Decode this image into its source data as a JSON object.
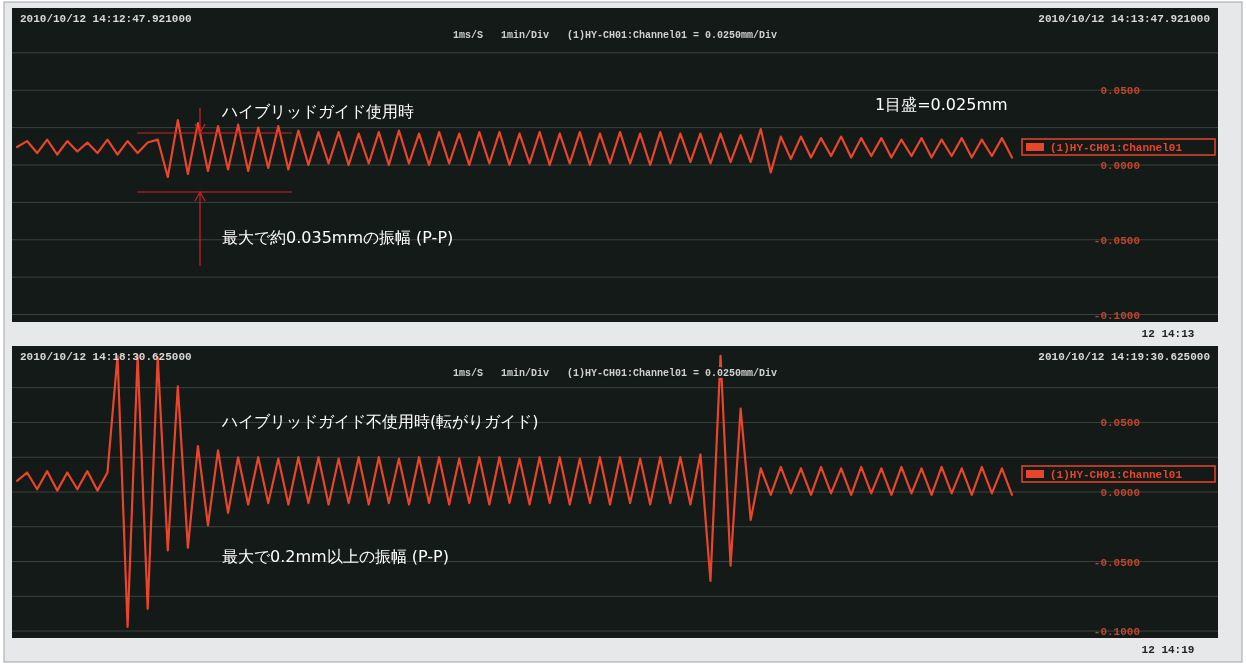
{
  "chart_data": [
    {
      "type": "line",
      "annotations": [
        "2010/10/12 14:12:47.921000",
        "2010/10/12 14:13:47.921000",
        "1ms/S   1min/Div   (1)HY-CH01:Channel01 = 0.0250mm/Div",
        "ハイブリッドガイド使用時",
        "1目盛=0.025mm",
        "最大で約0.035mmの振幅 (P-P)",
        "12 14:13"
      ],
      "categories": [
        null,
        null,
        null,
        null,
        null,
        null,
        null,
        null,
        null,
        null,
        null,
        null,
        null,
        null,
        null,
        null,
        null,
        null,
        null,
        null,
        null,
        null,
        null,
        null,
        null,
        null,
        null,
        null,
        null,
        null,
        null,
        null,
        null,
        null,
        null,
        null,
        null,
        null,
        null,
        null,
        null,
        null,
        null,
        null,
        null,
        null,
        null,
        null,
        null,
        null,
        null,
        null,
        null,
        null,
        null,
        null,
        null,
        null,
        null,
        null,
        null,
        null,
        null,
        null,
        null,
        null,
        null,
        null,
        null,
        null,
        null,
        null,
        null,
        null,
        null,
        null,
        null,
        null,
        null,
        null,
        null,
        null,
        null,
        null,
        null,
        null,
        null,
        null,
        null,
        null,
        null,
        null,
        null,
        null,
        null,
        null,
        null,
        null,
        null,
        null,
        null,
        null,
        null,
        null,
        null,
        null,
        null,
        null,
        null,
        null,
        null,
        null,
        null,
        null,
        null,
        null,
        null,
        null,
        null,
        null
      ],
      "ylim": [
        -0.105,
        0.105
      ],
      "yticks": [
        {
          "value": -0.1,
          "label": "-0.1000"
        },
        {
          "value": -0.075,
          "label": null
        },
        {
          "value": -0.05,
          "label": "-0.0500"
        },
        {
          "value": -0.025,
          "label": null
        },
        {
          "value": 0,
          "label": "0.0000"
        },
        {
          "value": 0.025,
          "label": null
        },
        {
          "value": 0.05,
          "label": "0.0500"
        },
        {
          "value": 0.075,
          "label": null
        }
      ],
      "grid": "y",
      "legend": "right",
      "series": [
        {
          "name": "(1)HY-CH01:Channel01",
          "color": "#e8452a",
          "values": [
            0.012,
            0.016,
            0.008,
            0.017,
            0.007,
            0.016,
            0.009,
            0.015,
            0.008,
            0.017,
            0.007,
            0.016,
            0.008,
            0.015,
            0.017,
            -0.008,
            0.03,
            -0.006,
            0.028,
            -0.004,
            0.026,
            -0.003,
            0.027,
            -0.004,
            0.025,
            -0.002,
            0.026,
            -0.003,
            0.023,
            0.0,
            0.022,
            0.001,
            0.022,
            0.0,
            0.021,
            0.001,
            0.022,
            0.0,
            0.023,
            0.001,
            0.021,
            0.0,
            0.022,
            0.001,
            0.021,
            0.0,
            0.022,
            0.001,
            0.022,
            0.0,
            0.021,
            0.001,
            0.022,
            0.0,
            0.021,
            0.001,
            0.022,
            0.0,
            0.021,
            0.001,
            0.022,
            0.001,
            0.021,
            0.0,
            0.022,
            0.001,
            0.021,
            0.002,
            0.021,
            0.001,
            0.021,
            0.002,
            0.02,
            0.002,
            0.024,
            -0.005,
            0.019,
            0.004,
            0.019,
            0.005,
            0.018,
            0.006,
            0.019,
            0.005,
            0.018,
            0.006,
            0.018,
            0.005,
            0.017,
            0.006,
            0.018,
            0.005,
            0.017,
            0.006,
            0.018,
            0.005,
            0.017,
            0.006,
            0.018,
            0.005,
            null,
            null,
            null,
            null,
            null,
            null,
            null,
            null,
            null,
            null,
            null,
            null,
            null,
            null,
            null,
            null,
            null,
            null,
            null,
            null
          ]
        }
      ]
    },
    {
      "type": "line",
      "annotations": [
        "2010/10/12 14:18:30.625000",
        "2010/10/12 14:19:30.625000",
        "1ms/S   1min/Div   (1)HY-CH01:Channel01 = 0.0250mm/Div",
        "ハイブリッドガイド不使用時(転がりガイド)",
        "最大で0.2mm以上の振幅 (P-P)",
        "12 14:19"
      ],
      "categories": [
        null,
        null,
        null,
        null,
        null,
        null,
        null,
        null,
        null,
        null,
        null,
        null,
        null,
        null,
        null,
        null,
        null,
        null,
        null,
        null,
        null,
        null,
        null,
        null,
        null,
        null,
        null,
        null,
        null,
        null,
        null,
        null,
        null,
        null,
        null,
        null,
        null,
        null,
        null,
        null,
        null,
        null,
        null,
        null,
        null,
        null,
        null,
        null,
        null,
        null,
        null,
        null,
        null,
        null,
        null,
        null,
        null,
        null,
        null,
        null,
        null,
        null,
        null,
        null,
        null,
        null,
        null,
        null,
        null,
        null,
        null,
        null,
        null,
        null,
        null,
        null,
        null,
        null,
        null,
        null,
        null,
        null,
        null,
        null,
        null,
        null,
        null,
        null,
        null,
        null,
        null,
        null,
        null,
        null,
        null,
        null,
        null,
        null,
        null,
        null,
        null,
        null,
        null,
        null,
        null,
        null,
        null,
        null,
        null,
        null,
        null,
        null,
        null,
        null,
        null,
        null,
        null,
        null,
        null,
        null
      ],
      "ylim": [
        -0.105,
        0.105
      ],
      "yticks": [
        {
          "value": -0.1,
          "label": "-0.1000"
        },
        {
          "value": -0.075,
          "label": null
        },
        {
          "value": -0.05,
          "label": "-0.0500"
        },
        {
          "value": -0.025,
          "label": null
        },
        {
          "value": 0,
          "label": "0.0000"
        },
        {
          "value": 0.025,
          "label": null
        },
        {
          "value": 0.05,
          "label": "0.0500"
        },
        {
          "value": 0.075,
          "label": null
        }
      ],
      "grid": "y",
      "legend": "right",
      "series": [
        {
          "name": "(1)HY-CH01:Channel01",
          "color": "#e8452a",
          "values": [
            0.008,
            0.014,
            0.002,
            0.015,
            0.001,
            0.014,
            0.002,
            0.015,
            0.001,
            0.014,
            0.098,
            -0.097,
            0.098,
            -0.084,
            0.097,
            -0.042,
            0.076,
            -0.04,
            0.033,
            -0.024,
            0.03,
            -0.015,
            0.025,
            -0.009,
            0.025,
            -0.008,
            0.024,
            -0.009,
            0.025,
            -0.008,
            0.025,
            -0.009,
            0.024,
            -0.008,
            0.025,
            -0.009,
            0.025,
            -0.008,
            0.024,
            -0.009,
            0.025,
            -0.008,
            0.025,
            -0.009,
            0.024,
            -0.008,
            0.025,
            -0.009,
            0.025,
            -0.008,
            0.024,
            -0.009,
            0.025,
            -0.008,
            0.025,
            -0.009,
            0.024,
            -0.008,
            0.025,
            -0.009,
            0.025,
            -0.008,
            0.024,
            -0.009,
            0.025,
            -0.008,
            0.025,
            -0.009,
            0.027,
            -0.064,
            0.098,
            -0.053,
            0.06,
            -0.02,
            0.017,
            -0.002,
            0.018,
            -0.001,
            0.017,
            -0.002,
            0.018,
            -0.001,
            0.017,
            -0.002,
            0.018,
            -0.001,
            0.017,
            -0.002,
            0.018,
            -0.001,
            0.017,
            -0.002,
            0.018,
            -0.001,
            0.017,
            -0.002,
            0.018,
            -0.001,
            0.017,
            -0.002,
            null,
            null,
            null,
            null,
            null,
            null,
            null,
            null,
            null,
            null,
            null,
            null,
            null,
            null,
            null,
            null,
            null,
            null,
            null,
            null
          ]
        }
      ]
    }
  ]
}
